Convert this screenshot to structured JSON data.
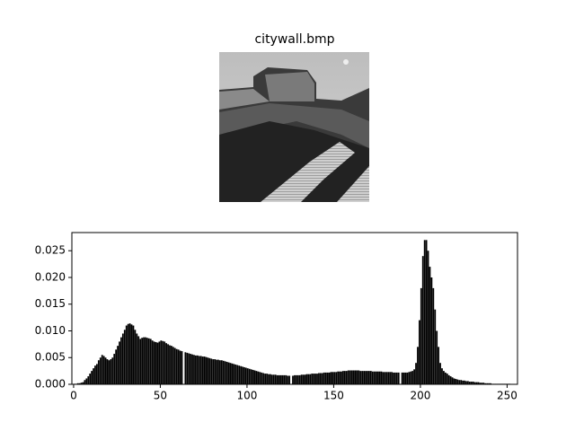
{
  "image": {
    "title": "citywall.bmp"
  },
  "chart_data": {
    "type": "histogram",
    "bins": [
      0,
      1,
      2,
      3,
      4,
      5,
      6,
      7,
      8,
      9,
      10,
      11,
      12,
      13,
      14,
      15,
      16,
      17,
      18,
      19,
      20,
      21,
      22,
      23,
      24,
      25,
      26,
      27,
      28,
      29,
      30,
      31,
      32,
      33,
      34,
      35,
      36,
      37,
      38,
      39,
      40,
      41,
      42,
      43,
      44,
      45,
      46,
      47,
      48,
      49,
      50,
      51,
      52,
      53,
      54,
      55,
      56,
      57,
      58,
      59,
      60,
      61,
      62,
      63,
      64,
      65,
      66,
      67,
      68,
      69,
      70,
      71,
      72,
      73,
      74,
      75,
      76,
      77,
      78,
      79,
      80,
      81,
      82,
      83,
      84,
      85,
      86,
      87,
      88,
      89,
      90,
      91,
      92,
      93,
      94,
      95,
      96,
      97,
      98,
      99,
      100,
      101,
      102,
      103,
      104,
      105,
      106,
      107,
      108,
      109,
      110,
      111,
      112,
      113,
      114,
      115,
      116,
      117,
      118,
      119,
      120,
      121,
      122,
      123,
      124,
      125,
      126,
      127,
      128,
      129,
      130,
      131,
      132,
      133,
      134,
      135,
      136,
      137,
      138,
      139,
      140,
      141,
      142,
      143,
      144,
      145,
      146,
      147,
      148,
      149,
      150,
      151,
      152,
      153,
      154,
      155,
      156,
      157,
      158,
      159,
      160,
      161,
      162,
      163,
      164,
      165,
      166,
      167,
      168,
      169,
      170,
      171,
      172,
      173,
      174,
      175,
      176,
      177,
      178,
      179,
      180,
      181,
      182,
      183,
      184,
      185,
      186,
      187,
      188,
      189,
      190,
      191,
      192,
      193,
      194,
      195,
      196,
      197,
      198,
      199,
      200,
      201,
      202,
      203,
      204,
      205,
      206,
      207,
      208,
      209,
      210,
      211,
      212,
      213,
      214,
      215,
      216,
      217,
      218,
      219,
      220,
      221,
      222,
      223,
      224,
      225,
      226,
      227,
      228,
      229,
      230,
      231,
      232,
      233,
      234,
      235,
      236,
      237,
      238,
      239,
      240,
      241,
      242,
      243,
      244,
      245,
      246,
      247,
      248,
      249,
      250,
      251,
      252,
      253,
      254,
      255,
      256
    ],
    "values": [
      0.0001,
      0.0001,
      0.0002,
      0.0002,
      0.0003,
      0.0004,
      0.0008,
      0.0011,
      0.0015,
      0.002,
      0.0025,
      0.003,
      0.0035,
      0.0038,
      0.0045,
      0.005,
      0.0055,
      0.0053,
      0.005,
      0.0047,
      0.0045,
      0.0047,
      0.005,
      0.0057,
      0.0065,
      0.0072,
      0.008,
      0.0088,
      0.0095,
      0.0102,
      0.011,
      0.0113,
      0.0114,
      0.0112,
      0.011,
      0.0102,
      0.0095,
      0.009,
      0.0085,
      0.0087,
      0.0088,
      0.0088,
      0.0087,
      0.0086,
      0.0085,
      0.0082,
      0.008,
      0.0079,
      0.0078,
      0.008,
      0.0082,
      0.0081,
      0.008,
      0.0077,
      0.0075,
      0.0073,
      0.0072,
      0.007,
      0.0068,
      0.0066,
      0.0065,
      0.0063,
      0.0062,
      0,
      0.006,
      0.0059,
      0.0058,
      0.0057,
      0.0056,
      0.0055,
      0.0054,
      0.0054,
      0.0053,
      0.0053,
      0.0052,
      0.0052,
      0.0051,
      0.005,
      0.0049,
      0.0048,
      0.0047,
      0.0047,
      0.0046,
      0.0046,
      0.0045,
      0.0045,
      0.0044,
      0.0043,
      0.0042,
      0.0041,
      0.004,
      0.0039,
      0.0038,
      0.0037,
      0.0036,
      0.0035,
      0.0034,
      0.0033,
      0.0032,
      0.0031,
      0.003,
      0.0029,
      0.0028,
      0.0027,
      0.0026,
      0.0025,
      0.0024,
      0.0023,
      0.0022,
      0.0021,
      0.002,
      0.002,
      0.0019,
      0.0019,
      0.0018,
      0.0018,
      0.0018,
      0.0017,
      0.0017,
      0.0017,
      0.0017,
      0.0017,
      0.0017,
      0.0016,
      0.0016,
      0,
      0.0016,
      0.0017,
      0.0017,
      0.0017,
      0.0017,
      0.0018,
      0.0018,
      0.0018,
      0.0019,
      0.0019,
      0.0019,
      0.002,
      0.002,
      0.002,
      0.002,
      0.0021,
      0.0021,
      0.0021,
      0.0022,
      0.0022,
      0.0022,
      0.0022,
      0.0023,
      0.0023,
      0.0023,
      0.0023,
      0.0024,
      0.0024,
      0.0024,
      0.0025,
      0.0025,
      0.0025,
      0.0026,
      0.0026,
      0.0026,
      0.0026,
      0.0026,
      0.0026,
      0.0026,
      0.0025,
      0.0025,
      0.0025,
      0.0025,
      0.0025,
      0.0025,
      0.0025,
      0.0024,
      0.0024,
      0.0024,
      0.0024,
      0.0024,
      0.0024,
      0.0023,
      0.0023,
      0.0023,
      0.0023,
      0.0023,
      0.0023,
      0.0022,
      0.0022,
      0.0022,
      0.0022,
      0,
      0.0022,
      0.0022,
      0.0022,
      0.0022,
      0.0023,
      0.0024,
      0.0025,
      0.0028,
      0.004,
      0.007,
      0.012,
      0.018,
      0.024,
      0.027,
      0.027,
      0.025,
      0.022,
      0.02,
      0.018,
      0.014,
      0.01,
      0.007,
      0.004,
      0.003,
      0.0025,
      0.0022,
      0.002,
      0.0017,
      0.0015,
      0.0013,
      0.0011,
      0.001,
      0.0009,
      0.0008,
      0.0008,
      0.0007,
      0.0007,
      0.0006,
      0.0006,
      0.0005,
      0.0005,
      0.0005,
      0.0004,
      0.0004,
      0.0004,
      0.0003,
      0.0003,
      0.0003,
      0.0002,
      0.0002,
      0.0002,
      0.0002,
      0.0001,
      0.0001,
      0.0001,
      0.0001,
      0.0001,
      0.0001,
      0.0001,
      0.0001,
      0.0001,
      0.0001,
      0.0001,
      0,
      0,
      0,
      0
    ],
    "color": "#000000",
    "xlim": [
      -1,
      256
    ],
    "ylim": [
      0,
      0.0284
    ],
    "xticks": [
      0,
      50,
      100,
      150,
      200,
      250
    ],
    "yticks": [
      {
        "value": 0,
        "label": "0.000"
      },
      {
        "value": 0.005,
        "label": "0.005"
      },
      {
        "value": 0.01,
        "label": "0.010"
      },
      {
        "value": 0.015,
        "label": "0.015"
      },
      {
        "value": 0.02,
        "label": "0.020"
      },
      {
        "value": 0.025,
        "label": "0.025"
      }
    ]
  }
}
